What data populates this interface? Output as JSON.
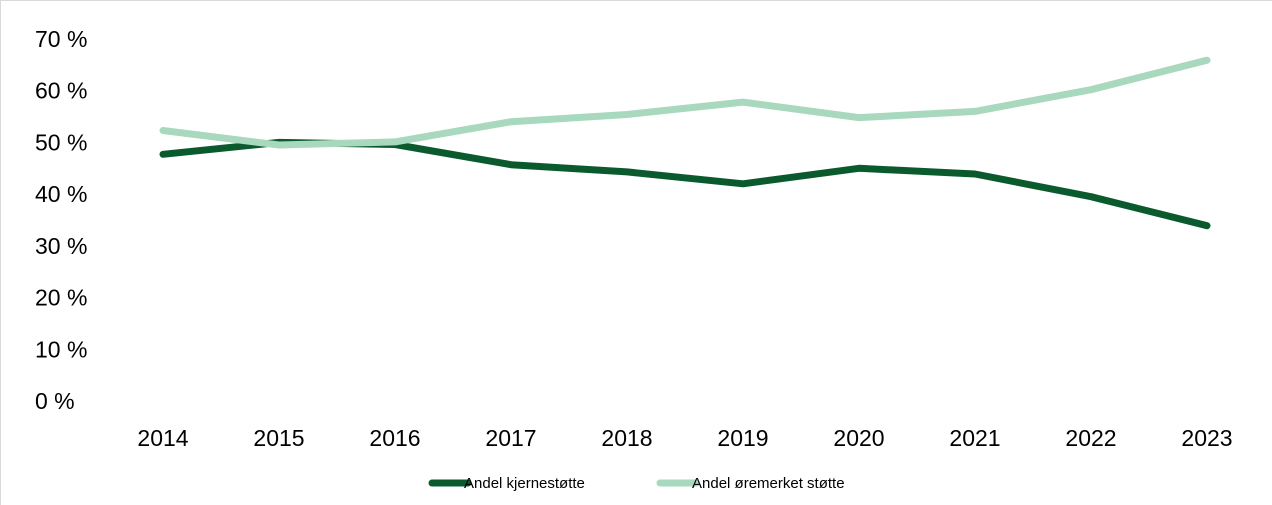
{
  "chart_data": {
    "type": "line",
    "title": "",
    "xlabel": "",
    "ylabel": "",
    "x": [
      "2014",
      "2015",
      "2016",
      "2017",
      "2018",
      "2019",
      "2020",
      "2021",
      "2022",
      "2023"
    ],
    "ylim": [
      0,
      70
    ],
    "yticks": [
      0,
      10,
      20,
      30,
      40,
      50,
      60,
      70
    ],
    "ytick_labels": [
      "0 %",
      "10 %",
      "20 %",
      "30 %",
      "40 %",
      "50 %",
      "60 %",
      "70 %"
    ],
    "grid": false,
    "legend_position": "bottom",
    "series": [
      {
        "name": "Andel kjernestøtte",
        "color": "#0b5a2e",
        "values": [
          47.7,
          50.0,
          49.6,
          45.7,
          44.3,
          42.0,
          45.0,
          43.9,
          39.5,
          33.9
        ]
      },
      {
        "name": "Andel øremerket støtte",
        "color": "#a8d8bd",
        "values": [
          52.3,
          49.5,
          50.1,
          54.0,
          55.4,
          57.8,
          54.8,
          56.0,
          60.2,
          65.9
        ]
      }
    ]
  }
}
